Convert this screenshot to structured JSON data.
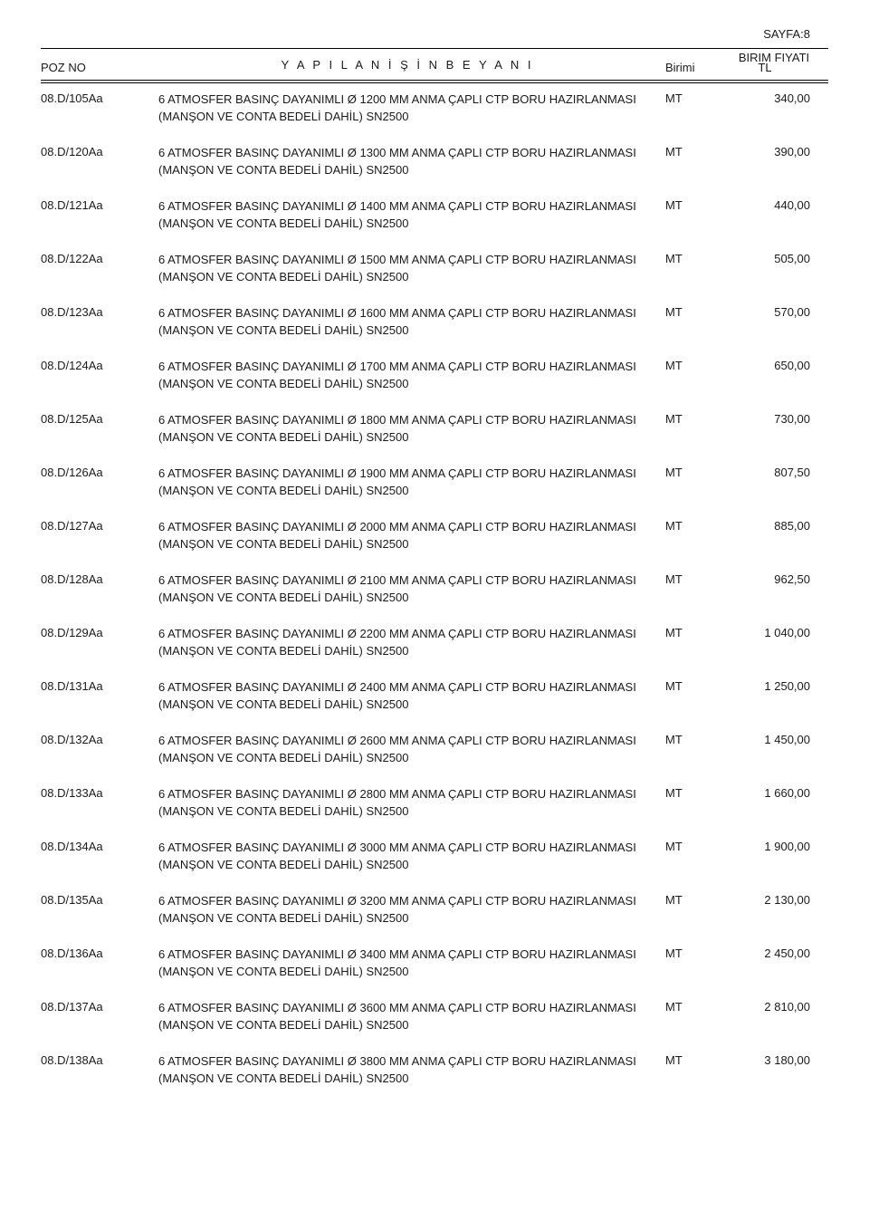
{
  "page_label": "SAYFA:8",
  "headers": {
    "poz": "POZ NO",
    "desc": "Y A P I L A N    İ Ş İ N   B E Y A N I",
    "unit": "Birimi",
    "price_top": "BIRIM FIYATI",
    "price_bottom": "TL"
  },
  "colors": {
    "text": "#1a1a1a",
    "background": "#ffffff",
    "rule": "#000000"
  },
  "font": {
    "family": "Arial",
    "body_size": 13,
    "line_height": 1.5
  },
  "rows": [
    {
      "poz": "08.D/105Aa",
      "desc": "6 ATMOSFER BASINÇ DAYANIMLI Ø 1200 MM ANMA ÇAPLI CTP BORU HAZIRLANMASI (MANŞON VE CONTA BEDELİ DAHİL) SN2500",
      "unit": "MT",
      "price": "340,00"
    },
    {
      "poz": "08.D/120Aa",
      "desc": "6 ATMOSFER BASINÇ DAYANIMLI Ø 1300 MM ANMA ÇAPLI CTP BORU HAZIRLANMASI (MANŞON VE CONTA BEDELİ DAHİL) SN2500",
      "unit": "MT",
      "price": "390,00"
    },
    {
      "poz": "08.D/121Aa",
      "desc": "6 ATMOSFER BASINÇ DAYANIMLI Ø 1400 MM ANMA ÇAPLI CTP BORU HAZIRLANMASI (MANŞON VE CONTA BEDELİ DAHİL) SN2500",
      "unit": "MT",
      "price": "440,00"
    },
    {
      "poz": "08.D/122Aa",
      "desc": "6 ATMOSFER BASINÇ DAYANIMLI Ø 1500 MM ANMA ÇAPLI CTP BORU HAZIRLANMASI (MANŞON VE CONTA BEDELİ DAHİL) SN2500",
      "unit": "MT",
      "price": "505,00"
    },
    {
      "poz": "08.D/123Aa",
      "desc": "6 ATMOSFER BASINÇ DAYANIMLI Ø 1600 MM ANMA ÇAPLI CTP BORU HAZIRLANMASI (MANŞON VE CONTA BEDELİ DAHİL) SN2500",
      "unit": "MT",
      "price": "570,00"
    },
    {
      "poz": "08.D/124Aa",
      "desc": "6 ATMOSFER BASINÇ DAYANIMLI Ø 1700 MM ANMA ÇAPLI CTP BORU HAZIRLANMASI (MANŞON VE CONTA BEDELİ DAHİL) SN2500",
      "unit": "MT",
      "price": "650,00"
    },
    {
      "poz": "08.D/125Aa",
      "desc": "6 ATMOSFER BASINÇ DAYANIMLI Ø 1800 MM ANMA ÇAPLI CTP BORU HAZIRLANMASI (MANŞON VE CONTA BEDELİ DAHİL) SN2500",
      "unit": "MT",
      "price": "730,00"
    },
    {
      "poz": "08.D/126Aa",
      "desc": "6 ATMOSFER BASINÇ DAYANIMLI Ø 1900 MM ANMA ÇAPLI CTP BORU HAZIRLANMASI (MANŞON VE CONTA BEDELİ DAHİL) SN2500",
      "unit": "MT",
      "price": "807,50"
    },
    {
      "poz": "08.D/127Aa",
      "desc": "6 ATMOSFER BASINÇ DAYANIMLI Ø 2000 MM ANMA ÇAPLI CTP BORU HAZIRLANMASI (MANŞON VE CONTA BEDELİ DAHİL) SN2500",
      "unit": "MT",
      "price": "885,00"
    },
    {
      "poz": "08.D/128Aa",
      "desc": "6 ATMOSFER BASINÇ DAYANIMLI Ø 2100 MM ANMA ÇAPLI CTP BORU HAZIRLANMASI (MANŞON VE CONTA BEDELİ DAHİL) SN2500",
      "unit": "MT",
      "price": "962,50"
    },
    {
      "poz": "08.D/129Aa",
      "desc": "6 ATMOSFER BASINÇ DAYANIMLI Ø 2200 MM ANMA ÇAPLI CTP BORU HAZIRLANMASI (MANŞON VE CONTA BEDELİ DAHİL) SN2500",
      "unit": "MT",
      "price": "1 040,00"
    },
    {
      "poz": "08.D/131Aa",
      "desc": "6 ATMOSFER BASINÇ DAYANIMLI Ø 2400 MM ANMA ÇAPLI CTP BORU HAZIRLANMASI (MANŞON VE CONTA BEDELİ DAHİL) SN2500",
      "unit": "MT",
      "price": "1 250,00"
    },
    {
      "poz": "08.D/132Aa",
      "desc": "6 ATMOSFER BASINÇ DAYANIMLI Ø 2600 MM ANMA ÇAPLI CTP BORU HAZIRLANMASI (MANŞON VE CONTA BEDELİ DAHİL) SN2500",
      "unit": "MT",
      "price": "1 450,00"
    },
    {
      "poz": "08.D/133Aa",
      "desc": "6 ATMOSFER BASINÇ DAYANIMLI Ø 2800 MM ANMA ÇAPLI CTP BORU HAZIRLANMASI (MANŞON VE CONTA BEDELİ DAHİL) SN2500",
      "unit": "MT",
      "price": "1 660,00"
    },
    {
      "poz": "08.D/134Aa",
      "desc": "6 ATMOSFER BASINÇ DAYANIMLI Ø 3000 MM ANMA ÇAPLI CTP BORU HAZIRLANMASI (MANŞON VE CONTA BEDELİ DAHİL) SN2500",
      "unit": "MT",
      "price": "1 900,00"
    },
    {
      "poz": "08.D/135Aa",
      "desc": "6 ATMOSFER BASINÇ DAYANIMLI Ø 3200 MM ANMA ÇAPLI CTP BORU HAZIRLANMASI (MANŞON VE CONTA BEDELİ DAHİL) SN2500",
      "unit": "MT",
      "price": "2 130,00"
    },
    {
      "poz": "08.D/136Aa",
      "desc": "6 ATMOSFER BASINÇ DAYANIMLI Ø 3400 MM ANMA ÇAPLI CTP BORU HAZIRLANMASI (MANŞON VE CONTA BEDELİ DAHİL) SN2500",
      "unit": "MT",
      "price": "2 450,00"
    },
    {
      "poz": "08.D/137Aa",
      "desc": "6 ATMOSFER BASINÇ DAYANIMLI Ø 3600 MM ANMA ÇAPLI CTP BORU HAZIRLANMASI (MANŞON VE CONTA BEDELİ DAHİL) SN2500",
      "unit": "MT",
      "price": "2 810,00"
    },
    {
      "poz": "08.D/138Aa",
      "desc": "6 ATMOSFER BASINÇ DAYANIMLI Ø 3800 MM ANMA ÇAPLI CTP BORU HAZIRLANMASI (MANŞON VE CONTA BEDELİ DAHİL) SN2500",
      "unit": "MT",
      "price": "3 180,00"
    }
  ]
}
